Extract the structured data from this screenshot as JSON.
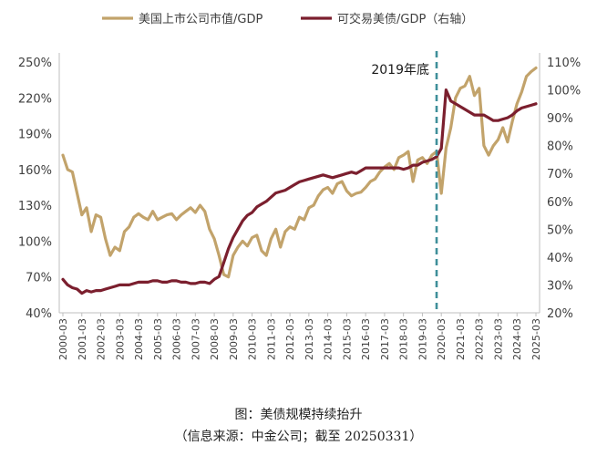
{
  "chart_data": {
    "type": "line",
    "legend": {
      "position": "top"
    },
    "annotation": {
      "label": "2019年底",
      "x": "2019-12"
    },
    "y_left": {
      "ticks": [
        "250%",
        "220%",
        "190%",
        "160%",
        "130%",
        "100%",
        "70%",
        "40%"
      ],
      "range": [
        40,
        250
      ]
    },
    "y_right": {
      "ticks": [
        "110%",
        "100%",
        "90%",
        "80%",
        "70%",
        "60%",
        "50%",
        "40%",
        "30%",
        "20%"
      ],
      "range": [
        20,
        110
      ]
    },
    "x_ticks": [
      "2000-03",
      "2001-03",
      "2002-03",
      "2003-03",
      "2004-03",
      "2005-03",
      "2006-03",
      "2007-03",
      "2008-03",
      "2009-03",
      "2010-03",
      "2011-03",
      "2012-03",
      "2013-03",
      "2014-03",
      "2015-03",
      "2016-03",
      "2017-03",
      "2018-03",
      "2019-03",
      "2020-03",
      "2021-03",
      "2022-03",
      "2023-03",
      "2024-03",
      "2025-03"
    ],
    "x_range": [
      2000.0,
      2025.0
    ],
    "series": [
      {
        "name": "美国上市公司市值/GDP",
        "axis": "left",
        "color": "#C2A36B",
        "x": [
          2000.0,
          2000.25,
          2000.5,
          2000.75,
          2001.0,
          2001.25,
          2001.5,
          2001.75,
          2002.0,
          2002.25,
          2002.5,
          2002.75,
          2003.0,
          2003.25,
          2003.5,
          2003.75,
          2004.0,
          2004.25,
          2004.5,
          2004.75,
          2005.0,
          2005.25,
          2005.5,
          2005.75,
          2006.0,
          2006.25,
          2006.5,
          2006.75,
          2007.0,
          2007.25,
          2007.5,
          2007.75,
          2008.0,
          2008.25,
          2008.5,
          2008.75,
          2009.0,
          2009.25,
          2009.5,
          2009.75,
          2010.0,
          2010.25,
          2010.5,
          2010.75,
          2011.0,
          2011.25,
          2011.5,
          2011.75,
          2012.0,
          2012.25,
          2012.5,
          2012.75,
          2013.0,
          2013.25,
          2013.5,
          2013.75,
          2014.0,
          2014.25,
          2014.5,
          2014.75,
          2015.0,
          2015.25,
          2015.5,
          2015.75,
          2016.0,
          2016.25,
          2016.5,
          2016.75,
          2017.0,
          2017.25,
          2017.5,
          2017.75,
          2018.0,
          2018.25,
          2018.5,
          2018.75,
          2019.0,
          2019.25,
          2019.5,
          2019.75,
          2020.0,
          2020.25,
          2020.5,
          2020.75,
          2021.0,
          2021.25,
          2021.5,
          2021.75,
          2022.0,
          2022.25,
          2022.5,
          2022.75,
          2023.0,
          2023.25,
          2023.5,
          2023.75,
          2024.0,
          2024.25,
          2024.5,
          2024.75,
          2025.0
        ],
        "y": [
          172,
          160,
          158,
          140,
          122,
          128,
          108,
          122,
          120,
          102,
          88,
          95,
          92,
          108,
          112,
          120,
          123,
          120,
          118,
          125,
          118,
          120,
          122,
          123,
          118,
          122,
          125,
          128,
          124,
          130,
          125,
          110,
          102,
          88,
          72,
          70,
          88,
          95,
          100,
          96,
          103,
          105,
          92,
          88,
          102,
          110,
          95,
          108,
          112,
          110,
          120,
          118,
          128,
          130,
          138,
          143,
          145,
          140,
          148,
          150,
          142,
          138,
          140,
          141,
          145,
          150,
          152,
          158,
          162,
          165,
          160,
          170,
          172,
          175,
          150,
          168,
          170,
          165,
          172,
          175,
          140,
          178,
          195,
          220,
          228,
          230,
          238,
          222,
          228,
          180,
          172,
          180,
          185,
          195,
          183,
          200,
          215,
          225,
          238,
          242,
          245
        ]
      },
      {
        "name": "可交易美债/GDP（右轴）",
        "axis": "right",
        "color": "#7B1F2E",
        "x": [
          2000.0,
          2000.25,
          2000.5,
          2000.75,
          2001.0,
          2001.25,
          2001.5,
          2001.75,
          2002.0,
          2002.25,
          2002.5,
          2002.75,
          2003.0,
          2003.25,
          2003.5,
          2003.75,
          2004.0,
          2004.25,
          2004.5,
          2004.75,
          2005.0,
          2005.25,
          2005.5,
          2005.75,
          2006.0,
          2006.25,
          2006.5,
          2006.75,
          2007.0,
          2007.25,
          2007.5,
          2007.75,
          2008.0,
          2008.25,
          2008.5,
          2008.75,
          2009.0,
          2009.25,
          2009.5,
          2009.75,
          2010.0,
          2010.25,
          2010.5,
          2010.75,
          2011.0,
          2011.25,
          2011.5,
          2011.75,
          2012.0,
          2012.25,
          2012.5,
          2012.75,
          2013.0,
          2013.25,
          2013.5,
          2013.75,
          2014.0,
          2014.25,
          2014.5,
          2014.75,
          2015.0,
          2015.25,
          2015.5,
          2015.75,
          2016.0,
          2016.25,
          2016.5,
          2016.75,
          2017.0,
          2017.25,
          2017.5,
          2017.75,
          2018.0,
          2018.25,
          2018.5,
          2018.75,
          2019.0,
          2019.25,
          2019.5,
          2019.75,
          2020.0,
          2020.25,
          2020.5,
          2020.75,
          2021.0,
          2021.25,
          2021.5,
          2021.75,
          2022.0,
          2022.25,
          2022.5,
          2022.75,
          2023.0,
          2023.25,
          2023.5,
          2023.75,
          2024.0,
          2024.25,
          2024.5,
          2024.75,
          2025.0
        ],
        "y": [
          32,
          30,
          29,
          28.5,
          27,
          28,
          27.5,
          28,
          28,
          28.5,
          29,
          29.5,
          30,
          30,
          30,
          30.5,
          31,
          31,
          31,
          31.5,
          31.5,
          31,
          31,
          31.5,
          31.5,
          31,
          31,
          30.5,
          30.5,
          31,
          31,
          30.5,
          32,
          33,
          38,
          43,
          47,
          50,
          53,
          55,
          56,
          58,
          59,
          60,
          61.5,
          63,
          63.5,
          64,
          65,
          66,
          67,
          67.5,
          68,
          68.5,
          69,
          69.5,
          69,
          68.5,
          69,
          69.5,
          70,
          70.5,
          70,
          71,
          72,
          72,
          72,
          72,
          72,
          72,
          72,
          72,
          71.5,
          72,
          73,
          73,
          74,
          74.5,
          75,
          76,
          79,
          100,
          96,
          95,
          94,
          93,
          92,
          91,
          91,
          91,
          90,
          89,
          89,
          89.5,
          90,
          91,
          92.5,
          93.5,
          94,
          94.5,
          95
        ]
      }
    ]
  },
  "caption": {
    "title": "图：美债规模持续抬升",
    "source": "（信息来源：中金公司；截至 20250331）"
  }
}
